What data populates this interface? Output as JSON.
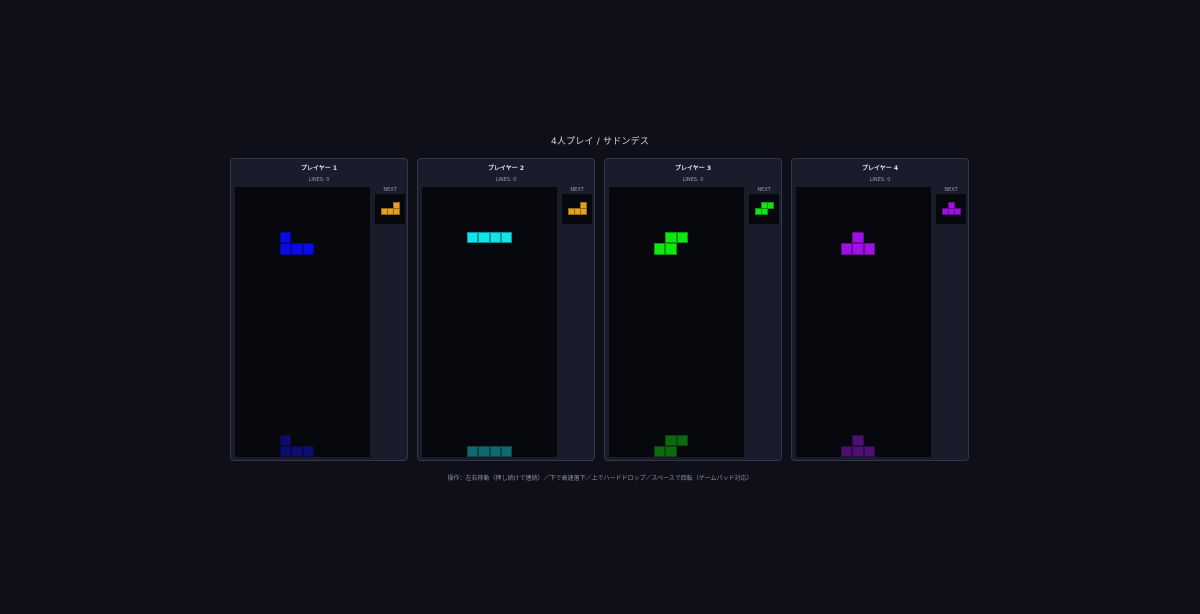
{
  "title": "4人プレイ / サドンデス",
  "footer": "操作：左右移動（押し続けで連続）／下で高速落下／上でハードドロップ／スペースで回転（ゲームパッド対応）",
  "next_label": "NEXT",
  "players": [
    {
      "name": "プレイヤー 1",
      "lines": "LINES: 0",
      "color": "#0a0ae6",
      "ghost_color": "#0d0d6e",
      "piece": "J",
      "next_piece": "L",
      "next_color": "#e6a020"
    },
    {
      "name": "プレイヤー 2",
      "lines": "LINES: 0",
      "color": "#10e6ea",
      "ghost_color": "#0f6a70",
      "piece": "I",
      "next_piece": "L",
      "next_color": "#e6a020"
    },
    {
      "name": "プレイヤー 3",
      "lines": "LINES: 0",
      "color": "#10e610",
      "ghost_color": "#0c6a10",
      "piece": "S",
      "next_piece": "S",
      "next_color": "#10e610"
    },
    {
      "name": "プレイヤー 4",
      "lines": "LINES: 0",
      "color": "#a010e6",
      "ghost_color": "#4d1070",
      "piece": "T",
      "next_piece": "T",
      "next_color": "#a010e6"
    }
  ]
}
